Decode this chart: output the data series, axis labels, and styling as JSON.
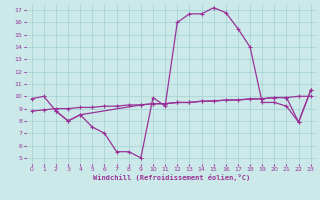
{
  "xlabel": "Windchill (Refroidissement éolien,°C)",
  "bg_color": "#cce9e9",
  "grid_color": "#aad5d5",
  "line_color": "#993399",
  "x_ticks": [
    0,
    1,
    2,
    3,
    4,
    5,
    6,
    7,
    8,
    9,
    10,
    11,
    12,
    13,
    14,
    15,
    16,
    17,
    18,
    19,
    20,
    21,
    22,
    23
  ],
  "y_ticks": [
    5,
    6,
    7,
    8,
    9,
    10,
    11,
    12,
    13,
    14,
    15,
    16,
    17
  ],
  "ylim": [
    4.5,
    17.5
  ],
  "xlim": [
    -0.5,
    23.5
  ],
  "curve1_x": [
    0,
    1,
    2,
    3,
    4,
    5,
    6,
    7,
    8,
    9,
    10,
    11,
    12,
    13,
    14,
    15,
    16,
    17,
    18,
    19,
    20,
    21,
    22,
    23
  ],
  "curve1_y": [
    9.8,
    10.0,
    8.8,
    8.0,
    8.5,
    7.5,
    7.0,
    5.5,
    5.5,
    5.0,
    9.9,
    9.2,
    16.0,
    16.7,
    16.7,
    17.2,
    16.8,
    15.5,
    14.0,
    9.5,
    9.5,
    9.2,
    7.9,
    10.5
  ],
  "curve2_x": [
    0,
    1,
    2,
    3,
    4,
    5,
    6,
    7,
    8,
    9,
    10,
    11,
    12,
    13,
    14,
    15,
    16,
    17,
    18,
    19,
    20,
    21,
    22,
    23
  ],
  "curve2_y": [
    8.8,
    8.9,
    9.0,
    9.0,
    9.1,
    9.1,
    9.2,
    9.2,
    9.3,
    9.3,
    9.4,
    9.4,
    9.5,
    9.5,
    9.6,
    9.6,
    9.7,
    9.7,
    9.8,
    9.8,
    9.9,
    9.9,
    10.0,
    10.0
  ],
  "curve3_x": [
    2,
    3,
    4,
    9,
    10,
    11,
    12,
    13,
    14,
    19,
    20,
    21,
    22,
    23
  ],
  "curve3_y": [
    8.8,
    8.0,
    8.5,
    9.3,
    9.4,
    9.4,
    9.5,
    9.5,
    9.6,
    9.8,
    9.9,
    9.9,
    7.9,
    10.5
  ]
}
